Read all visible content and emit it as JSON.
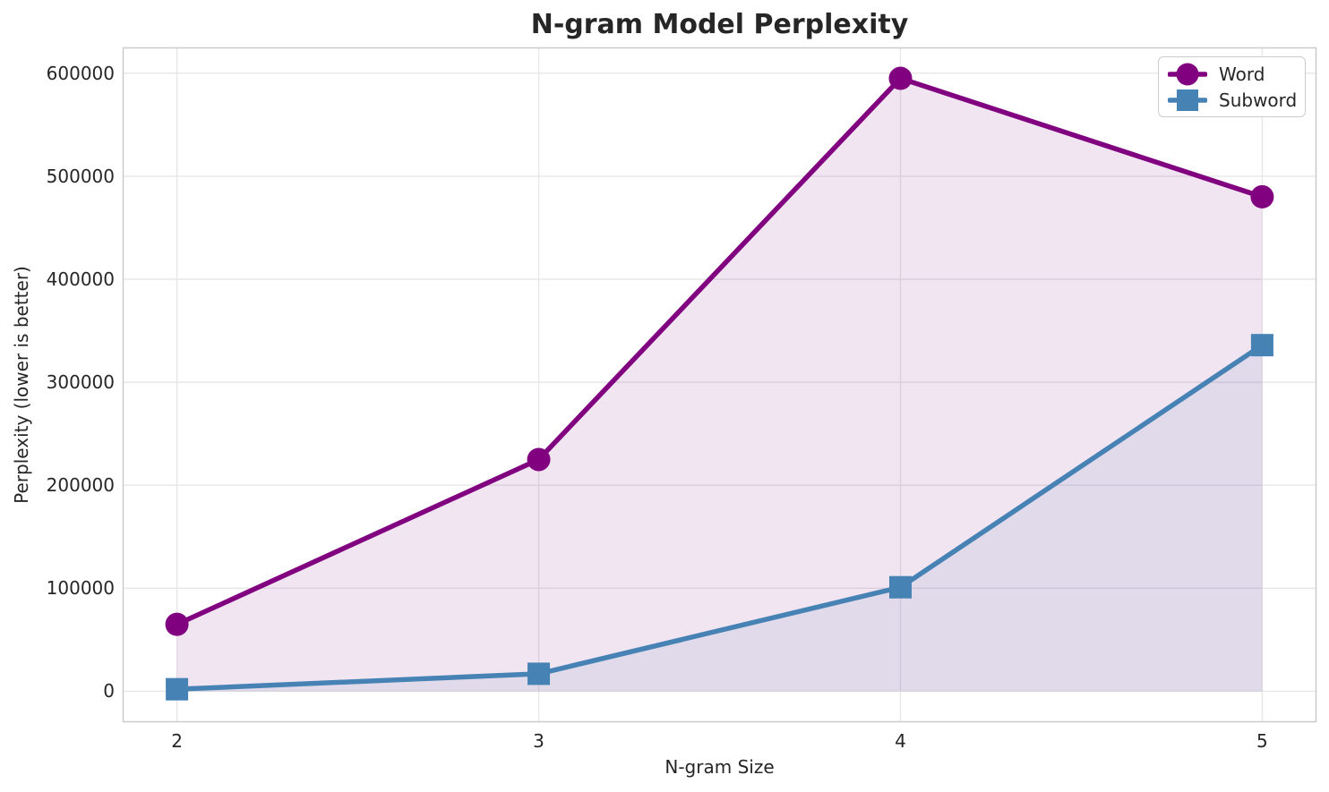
{
  "title": "N-gram Model Perplexity",
  "colors": {
    "word": "#800080",
    "subword": "#4682b4",
    "grid": "#e7e7e7",
    "spine": "#cbcbcb",
    "text": "#262626",
    "background": "#ffffff",
    "legend_border": "#cccccc"
  },
  "chart_data": {
    "type": "line",
    "title": "N-gram Model Perplexity",
    "xlabel": "N-gram Size",
    "ylabel": "Perplexity (lower is better)",
    "x": [
      2,
      3,
      4,
      5
    ],
    "series": [
      {
        "name": "Word",
        "values": [
          65000,
          225000,
          595000,
          480000
        ],
        "color": "#800080",
        "marker": "circle",
        "fill_opacity": 0.1
      },
      {
        "name": "Subword",
        "values": [
          2000,
          17000,
          101000,
          336000
        ],
        "color": "#4682b4",
        "marker": "square",
        "fill_opacity": 0.1
      }
    ],
    "x_ticks": [
      2,
      3,
      4,
      5
    ],
    "y_ticks": [
      0,
      100000,
      200000,
      300000,
      400000,
      500000,
      600000
    ],
    "xlim": [
      1.85,
      5.15
    ],
    "ylim": [
      -30000,
      625000
    ],
    "grid": true,
    "area_fill_baseline": 0,
    "legend_position": "upper right"
  }
}
